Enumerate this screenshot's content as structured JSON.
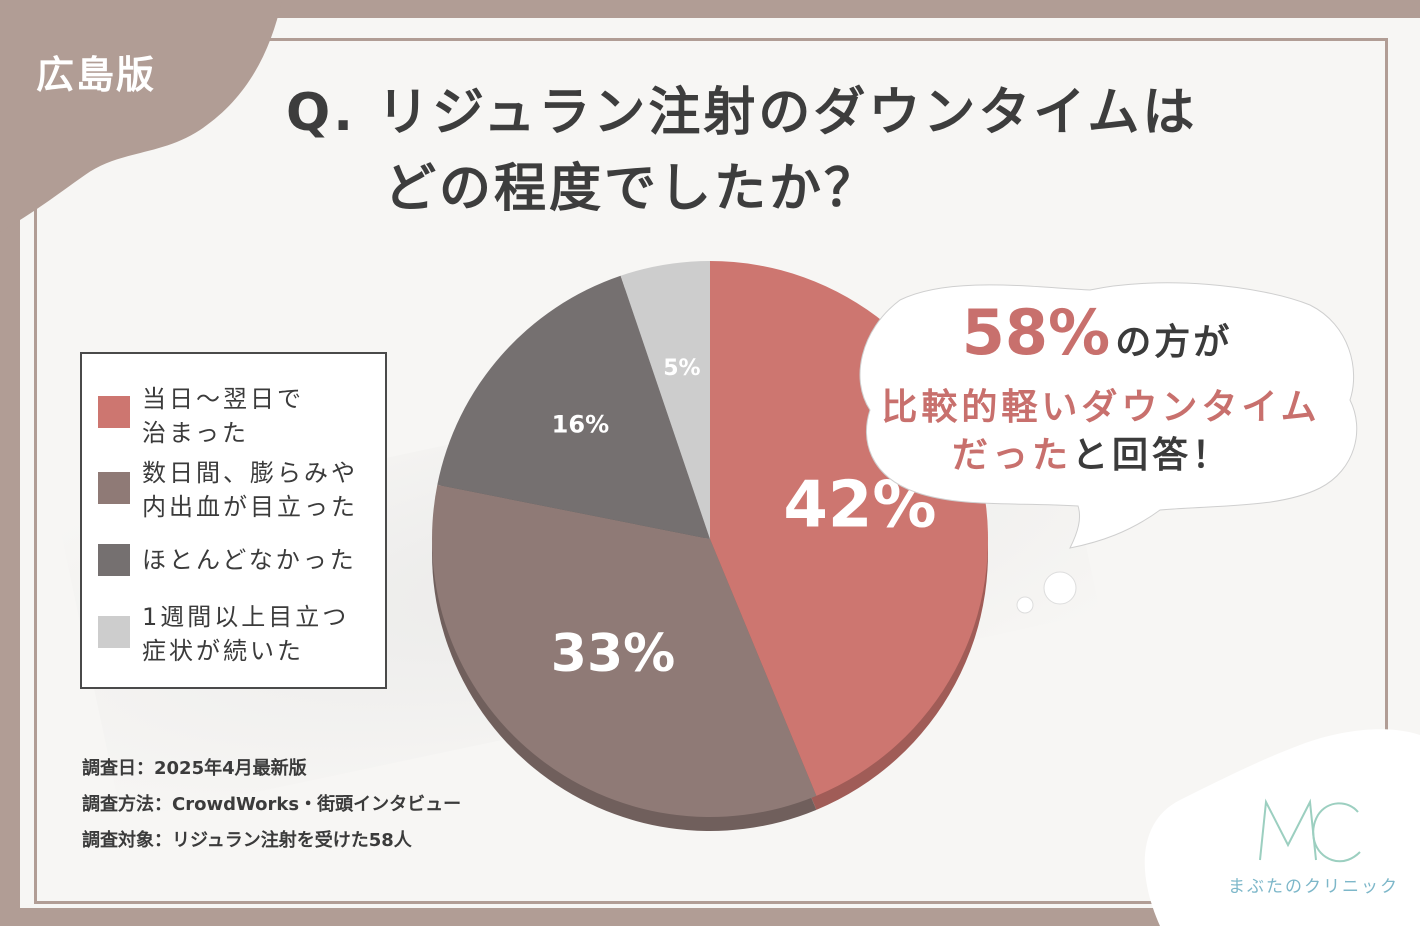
{
  "edition_label": "広島版",
  "title_line1": "Q. リジュラン注射のダウンタイムは",
  "title_line2": "どの程度でしたか？",
  "legend": [
    {
      "line1": "当日～翌日で",
      "line2": "治まった"
    },
    {
      "line1": "数日間、膨らみや",
      "line2": "内出血が目立った"
    },
    {
      "line1": "ほとんどなかった",
      "line2": ""
    },
    {
      "line1": "1週間以上目立つ",
      "line2": "症状が続いた"
    }
  ],
  "chart_data": {
    "type": "pie",
    "title": "Q. リジュラン注射のダウンタイムはどの程度でしたか？",
    "categories": [
      "当日～翌日で治まった",
      "数日間、膨らみや内出血が目立った",
      "ほとんどなかった",
      "1週間以上目立つ症状が続いた"
    ],
    "values": [
      42,
      33,
      16,
      5
    ],
    "labels": [
      "42%",
      "33%",
      "16%",
      "5%"
    ],
    "colors": [
      "#cd7670",
      "#8f7a76",
      "#757070",
      "#cdcdcd"
    ],
    "start_angle_deg": 0,
    "direction": "clockwise",
    "legend_position": "left"
  },
  "callout": {
    "percent": "58%",
    "line1_rest": "の方が",
    "line2": "比較的軽いダウンタイム",
    "line3_highlight": "だった",
    "line3_rest": "と回答！"
  },
  "survey": {
    "date": "調査日：2025年4月最新版",
    "method": "調査方法：CrowdWorks・街頭インタビュー",
    "subject": "調査対象：リジュラン注射を受けた58人"
  },
  "logo": {
    "monogram": "MC",
    "name": "まぶたのクリニック"
  },
  "colors": {
    "frame": "#b19d95",
    "accent": "#c8706d",
    "logo": "#7db7c9"
  }
}
